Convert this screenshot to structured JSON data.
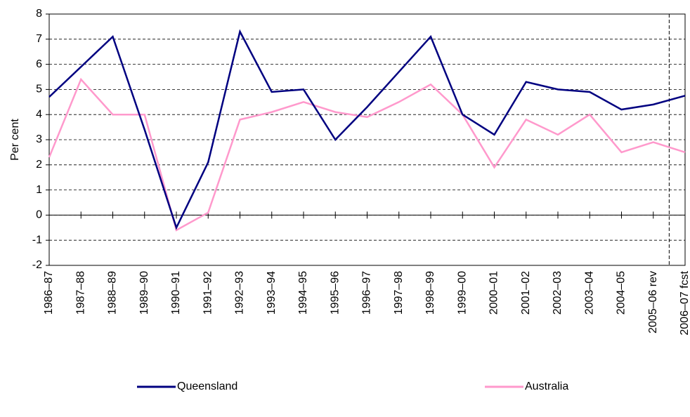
{
  "chart_data": {
    "type": "line",
    "y_label": "Per cent",
    "categories": [
      "1986–87",
      "1987–88",
      "1988–89",
      "1989–90",
      "1990–91",
      "1991–92",
      "1992–93",
      "1993–94",
      "1994–95",
      "1995–96",
      "1996–97",
      "1997–98",
      "1998–99",
      "1999–00",
      "2000–01",
      "2001–02",
      "2002–03",
      "2003–04",
      "2004–05",
      "2005–06 rev",
      "2006–07 fcst"
    ],
    "series": [
      {
        "name": "Queensland",
        "color": "#000080",
        "values": [
          4.7,
          5.9,
          7.1,
          3.4,
          -0.5,
          2.1,
          7.3,
          4.9,
          5.0,
          3.0,
          4.3,
          5.7,
          7.1,
          4.0,
          3.2,
          5.3,
          5.0,
          4.9,
          4.2,
          4.4,
          4.75
        ]
      },
      {
        "name": "Australia",
        "color": "#ff99cc",
        "values": [
          2.3,
          5.4,
          4.0,
          4.0,
          -0.6,
          0.1,
          3.8,
          4.1,
          4.5,
          4.1,
          3.9,
          4.5,
          5.2,
          4.0,
          1.9,
          3.8,
          3.2,
          4.0,
          2.5,
          2.9,
          2.5
        ]
      }
    ],
    "ylim": [
      -2,
      8
    ],
    "yticks": [
      -2,
      -1,
      0,
      1,
      2,
      3,
      4,
      5,
      6,
      7,
      8
    ],
    "grid": true,
    "legend": "bottom"
  }
}
